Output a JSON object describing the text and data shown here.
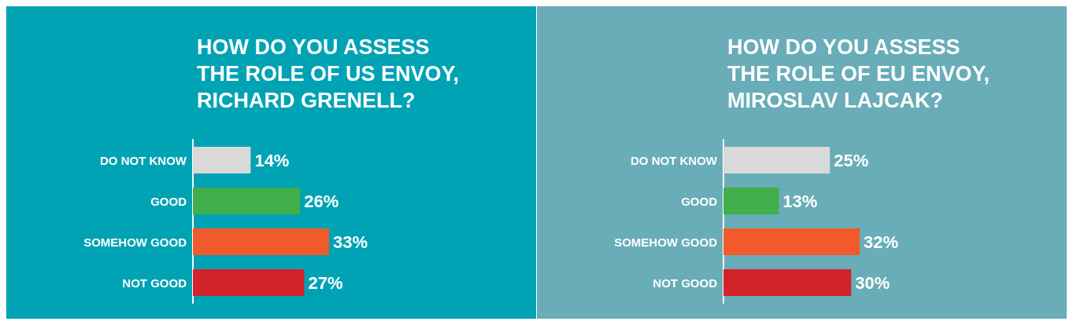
{
  "chart_data": [
    {
      "type": "bar",
      "orientation": "horizontal",
      "title": "HOW DO YOU ASSESS\nTHE ROLE OF US ENVOY,\nRICHARD GRENELL?",
      "categories": [
        "DO NOT KNOW",
        "GOOD",
        "SOMEHOW GOOD",
        "NOT GOOD"
      ],
      "values": [
        14,
        26,
        33,
        27
      ],
      "colors": [
        "#d9d9d9",
        "#40ae49",
        "#f15a2b",
        "#d2232a"
      ],
      "value_labels": [
        "14%",
        "26%",
        "33%",
        "27%"
      ]
    },
    {
      "type": "bar",
      "orientation": "horizontal",
      "title": "HOW DO YOU ASSESS\nTHE ROLE OF EU ENVOY,\nMIROSLAV LAJCAK?",
      "categories": [
        "DO NOT KNOW",
        "GOOD",
        "SOMEHOW GOOD",
        "NOT GOOD"
      ],
      "values": [
        25,
        13,
        32,
        30
      ],
      "colors": [
        "#d9d9d9",
        "#40ae49",
        "#f15a2b",
        "#d2232a"
      ],
      "value_labels": [
        "25%",
        "13%",
        "32%",
        "30%"
      ]
    }
  ]
}
